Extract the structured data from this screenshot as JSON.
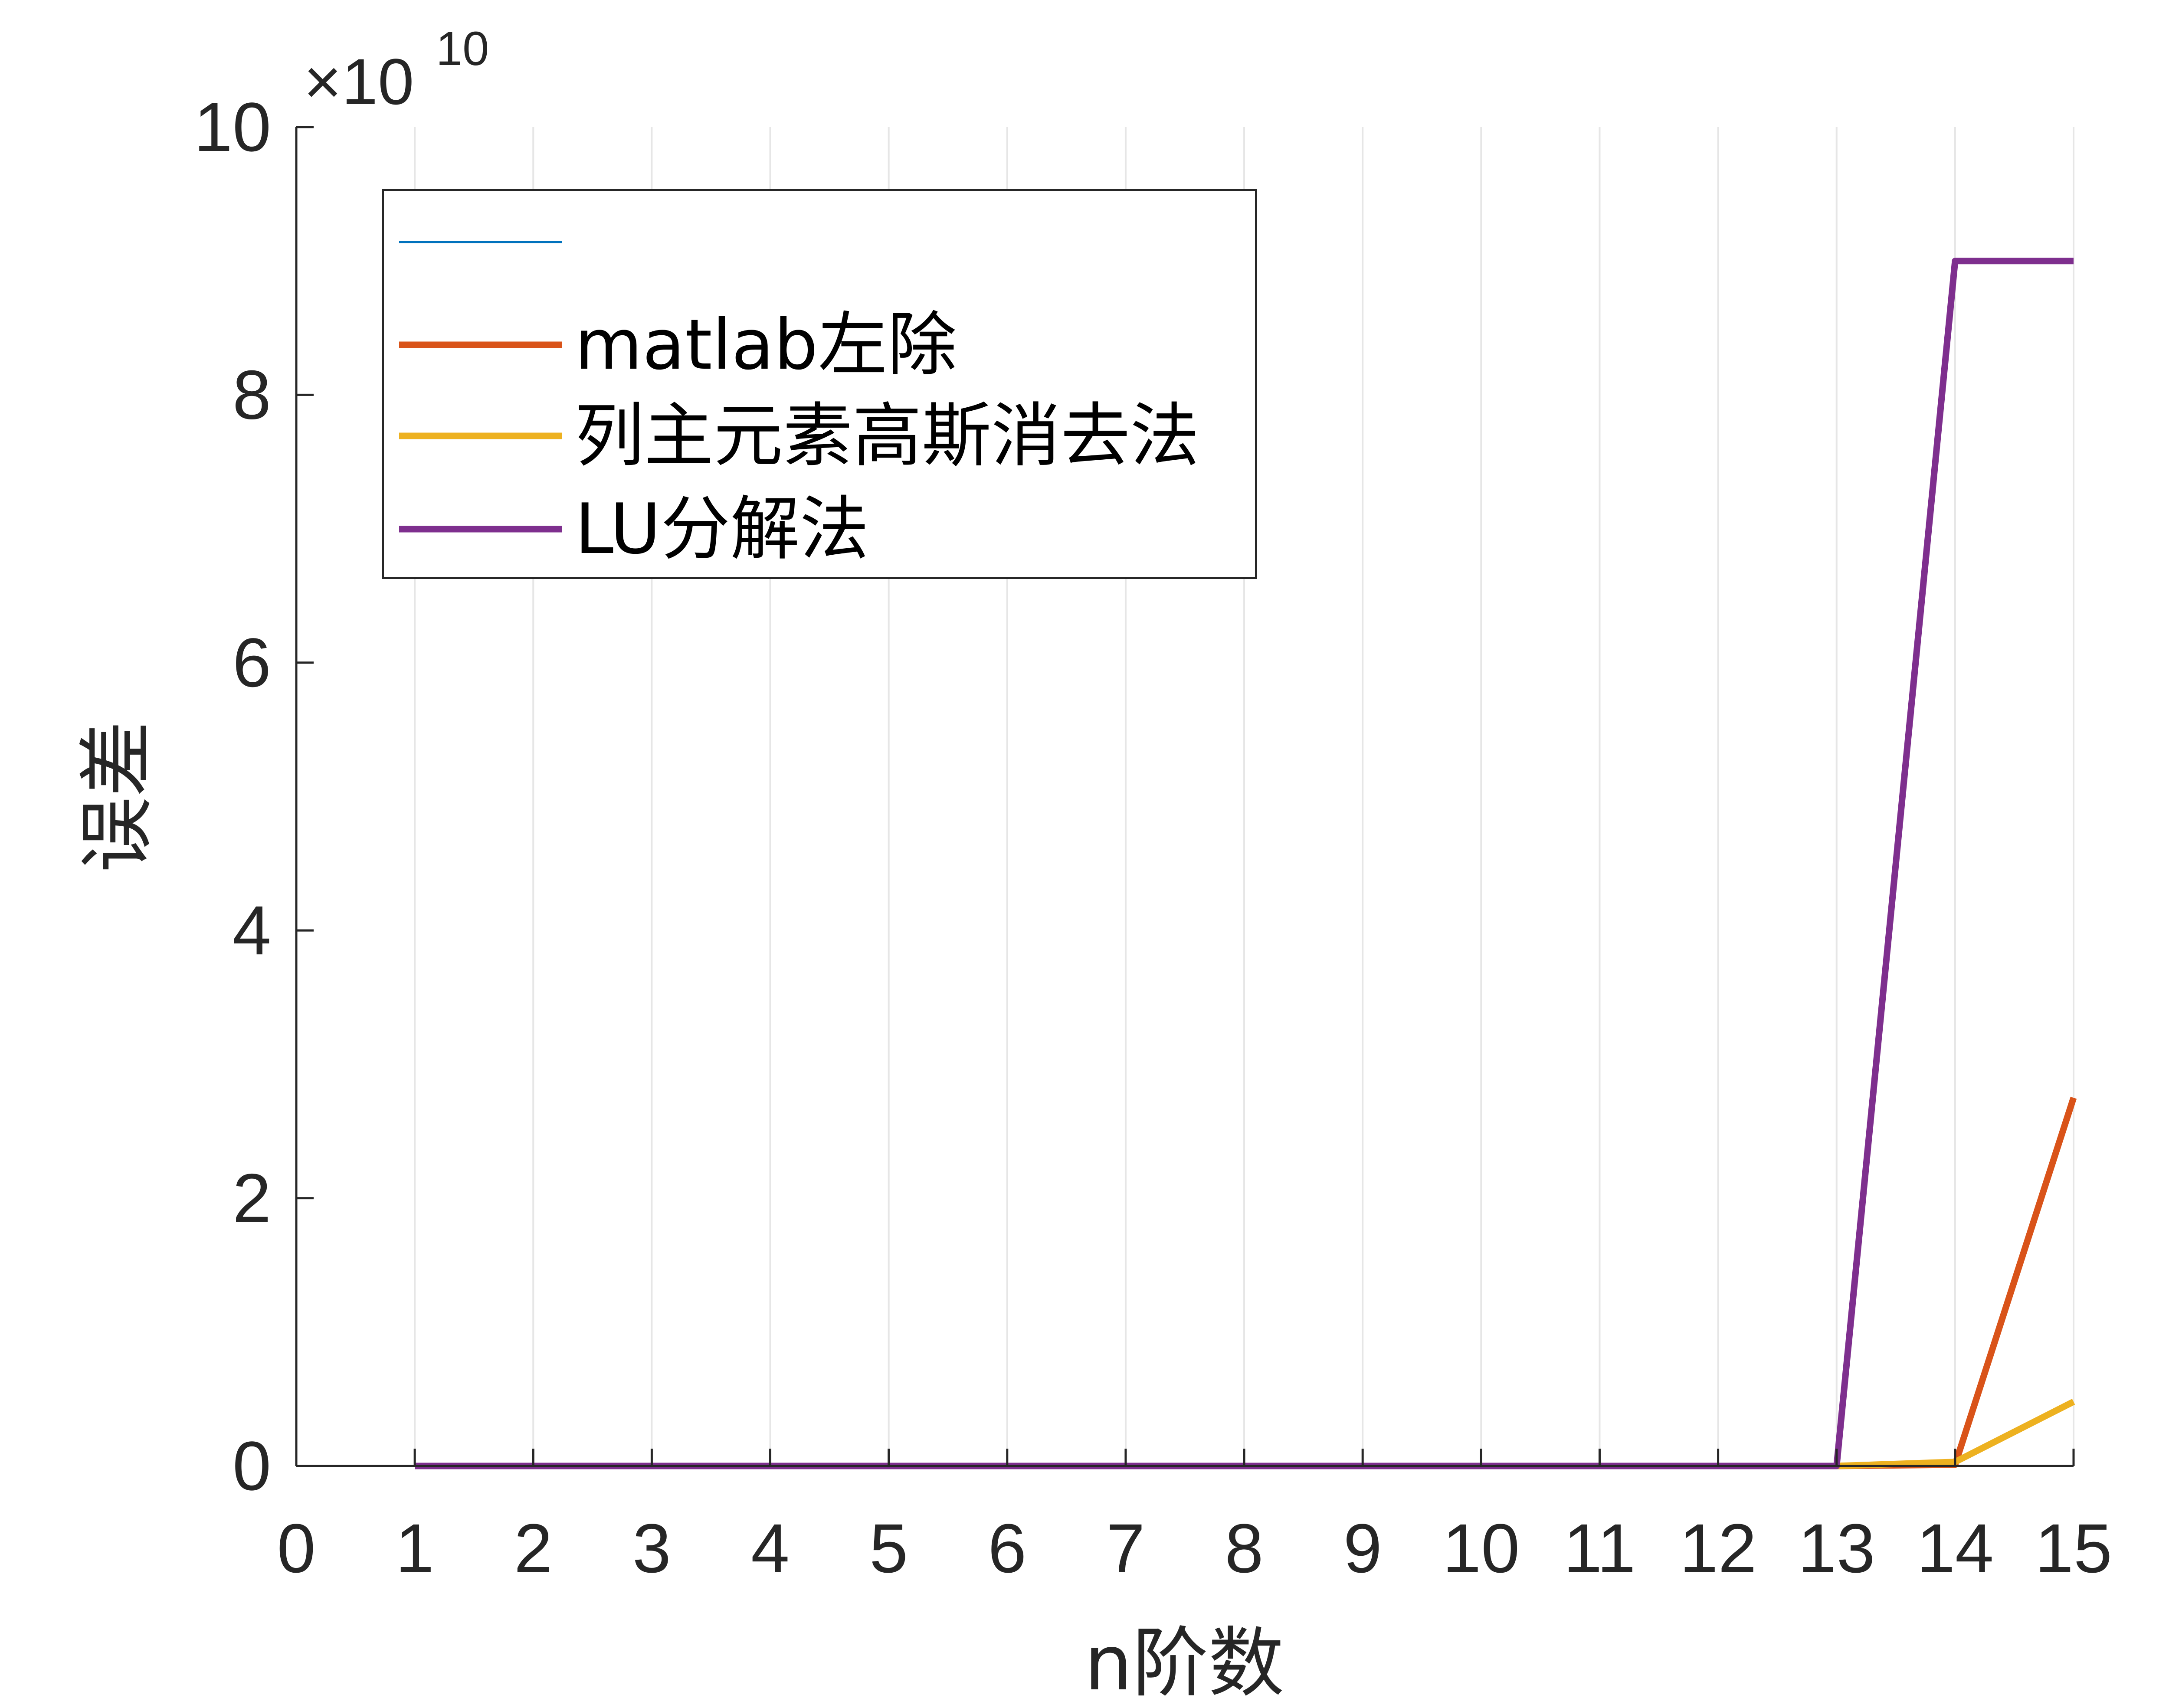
{
  "chart_data": {
    "type": "line",
    "xlabel": "n阶数",
    "ylabel": "误差",
    "y_exponent_base": "×10",
    "y_exponent_power": "10",
    "xlim": [
      0,
      15
    ],
    "ylim": [
      0,
      100000000000
    ],
    "x_ticks": [
      0,
      1,
      2,
      3,
      4,
      5,
      6,
      7,
      8,
      9,
      10,
      11,
      12,
      13,
      14,
      15
    ],
    "x_tick_labels": [
      "0",
      "1",
      "2",
      "3",
      "4",
      "5",
      "6",
      "7",
      "8",
      "9",
      "10",
      "11",
      "12",
      "13",
      "14",
      "15"
    ],
    "y_ticks": [
      0,
      20000000000,
      40000000000,
      60000000000,
      80000000000,
      100000000000
    ],
    "y_tick_labels": [
      "0",
      "2",
      "4",
      "6",
      "8",
      "10"
    ],
    "grid": "x-major",
    "legend_position": "top-left",
    "x": [
      1,
      2,
      3,
      4,
      5,
      6,
      7,
      8,
      9,
      10,
      11,
      12,
      13,
      14,
      15
    ],
    "series": [
      {
        "name": "",
        "color": "#0072BD",
        "line_width": "thin",
        "values": [
          0,
          0,
          0,
          0,
          0,
          0,
          0,
          0,
          0,
          0,
          0,
          0,
          0,
          0,
          0
        ]
      },
      {
        "name": "matlab左除",
        "color": "#D95319",
        "line_width": "thick",
        "values": [
          0,
          0,
          0,
          0,
          0,
          0,
          0,
          0,
          0,
          0,
          0,
          0,
          0,
          100000000,
          27500000000
        ]
      },
      {
        "name": "列主元素高斯消去法",
        "color": "#EDB120",
        "line_width": "thick",
        "values": [
          0,
          0,
          0,
          0,
          0,
          0,
          0,
          0,
          0,
          0,
          0,
          0,
          0,
          300000000,
          4800000000
        ]
      },
      {
        "name": "LU分解法",
        "color": "#7E2F8E",
        "line_width": "thick",
        "values": [
          0,
          0,
          0,
          0,
          0,
          0,
          0,
          0,
          0,
          0,
          0,
          0,
          0,
          90000000000,
          90000000000
        ]
      }
    ]
  }
}
